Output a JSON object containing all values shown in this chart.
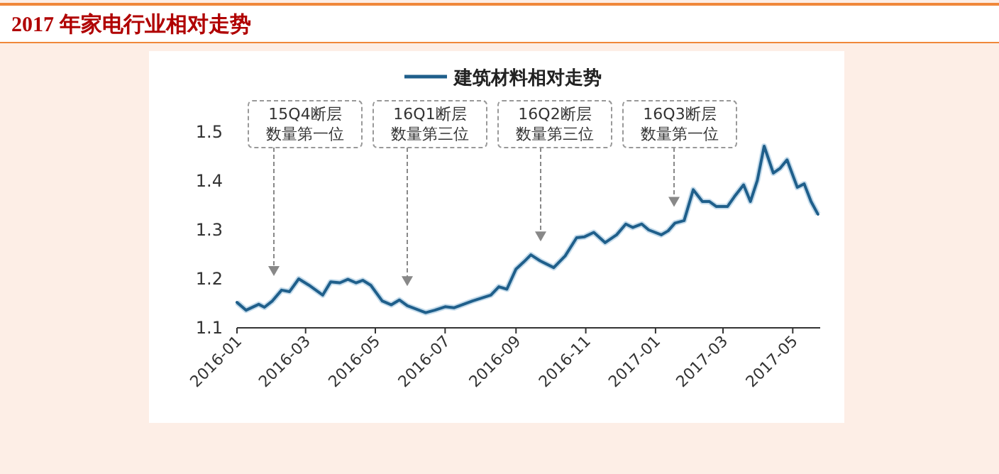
{
  "chart_data": {
    "type": "line",
    "title": "2017 年家电行业相对走势",
    "legend": "top",
    "x": [
      "2016-01-01",
      "2016-01-09",
      "2016-01-20",
      "2016-01-25",
      "2016-02-01",
      "2016-02-09",
      "2016-02-16",
      "2016-02-24",
      "2016-03-04",
      "2016-03-16",
      "2016-03-23",
      "2016-03-31",
      "2016-04-07",
      "2016-04-14",
      "2016-04-20",
      "2016-04-27",
      "2016-05-07",
      "2016-05-15",
      "2016-05-22",
      "2016-05-29",
      "2016-06-14",
      "2016-06-22",
      "2016-07-01",
      "2016-07-09",
      "2016-07-25",
      "2016-08-10",
      "2016-08-17",
      "2016-08-24",
      "2016-09-01",
      "2016-09-08",
      "2016-09-14",
      "2016-09-22",
      "2016-10-04",
      "2016-10-14",
      "2016-10-24",
      "2016-10-31",
      "2016-11-08",
      "2016-11-18",
      "2016-11-28",
      "2016-12-06",
      "2016-12-12",
      "2016-12-20",
      "2016-12-26",
      "2017-01-06",
      "2017-01-12",
      "2017-01-18",
      "2017-01-26",
      "2017-02-03",
      "2017-02-11",
      "2017-02-17",
      "2017-02-23",
      "2017-03-05",
      "2017-03-11",
      "2017-03-19",
      "2017-03-25",
      "2017-03-31",
      "2017-04-06",
      "2017-04-14",
      "2017-04-20",
      "2017-04-26",
      "2017-05-05",
      "2017-05-11",
      "2017-05-17",
      "2017-05-23"
    ],
    "series": [
      {
        "name": "建筑材料相对走势",
        "color": "#1f5f8b",
        "values": [
          1.152,
          1.136,
          1.148,
          1.142,
          1.155,
          1.177,
          1.174,
          1.2,
          1.187,
          1.167,
          1.194,
          1.192,
          1.199,
          1.192,
          1.197,
          1.187,
          1.155,
          1.147,
          1.157,
          1.145,
          1.131,
          1.136,
          1.143,
          1.141,
          1.155,
          1.167,
          1.184,
          1.179,
          1.22,
          1.235,
          1.249,
          1.237,
          1.223,
          1.247,
          1.284,
          1.286,
          1.295,
          1.274,
          1.29,
          1.312,
          1.305,
          1.312,
          1.3,
          1.29,
          1.298,
          1.314,
          1.319,
          1.382,
          1.358,
          1.358,
          1.348,
          1.348,
          1.368,
          1.392,
          1.358,
          1.401,
          1.471,
          1.416,
          1.426,
          1.443,
          1.387,
          1.394,
          1.358,
          1.332
        ]
      }
    ],
    "xlim": [
      "2016-01-01",
      "2017-05-25"
    ],
    "xticks": [
      "2016-01",
      "2016-03",
      "2016-05",
      "2016-07",
      "2016-09",
      "2016-11",
      "2017-01",
      "2017-03",
      "2017-05"
    ],
    "ylim": [
      1.1,
      1.5
    ],
    "yticks": [
      1.1,
      1.2,
      1.3,
      1.4,
      1.5
    ],
    "annotations": [
      "15Q4断层数量第一位",
      "16Q1断层数量第三位",
      "16Q2断层数量第三位",
      "16Q3断层数量第一位"
    ]
  }
}
